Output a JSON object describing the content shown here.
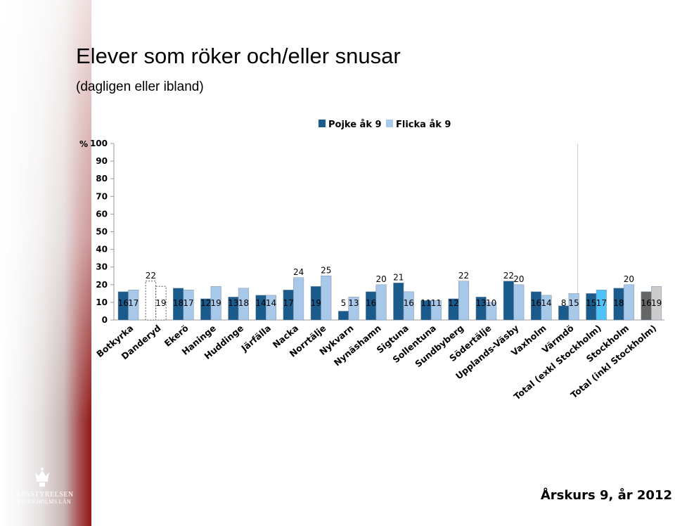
{
  "header": {
    "title": "Elever som röker och/eller snusar",
    "subtitle": "(dagligen eller ibland)"
  },
  "footer": {
    "text": "Årskurs 9, år 2012"
  },
  "logo": {
    "line1": "LÄNSSTYRELSEN",
    "line2": "I STOCKHOLMS LÄN",
    "icon": "crown-icon"
  },
  "colors": {
    "boy": "#1a5b8c",
    "girl": "#a8c8ea",
    "total_excl_girl": "#4fc3f7",
    "total_incl_boy": "#666666",
    "total_incl_girl": "#cccccc",
    "band_red": "#8e1a1a"
  },
  "chart_data": {
    "type": "bar",
    "title": "",
    "ylabel": "%",
    "ylim": [
      0,
      100
    ],
    "yticks": [
      0,
      10,
      20,
      30,
      40,
      50,
      60,
      70,
      80,
      90,
      100
    ],
    "legend_position": "top",
    "grid": false,
    "categories": [
      "Botkyrka",
      "Danderyd",
      "Ekerö",
      "Haninge",
      "Huddinge",
      "Järfälla",
      "Nacka",
      "Norrtälje",
      "Nykvarn",
      "Nynäshamn",
      "Sigtuna",
      "Sollentuna",
      "Sundbyberg",
      "Södertälje",
      "Upplands-Väsby",
      "Vaxholm",
      "Värmdö",
      "Total (exkl Stockholm)",
      "Stockholm",
      "Total (inkl Stockholm)"
    ],
    "series": [
      {
        "name": "Pojke åk 9",
        "values": [
          16,
          22,
          18,
          12,
          13,
          14,
          17,
          19,
          5,
          16,
          21,
          11,
          12,
          13,
          22,
          16,
          8,
          15,
          18,
          16
        ]
      },
      {
        "name": "Flicka åk 9",
        "values": [
          17,
          19,
          17,
          19,
          18,
          14,
          24,
          25,
          13,
          20,
          16,
          11,
          22,
          10,
          20,
          14,
          15,
          17,
          20,
          19
        ]
      }
    ],
    "dashed_categories": [
      "Danderyd"
    ]
  }
}
